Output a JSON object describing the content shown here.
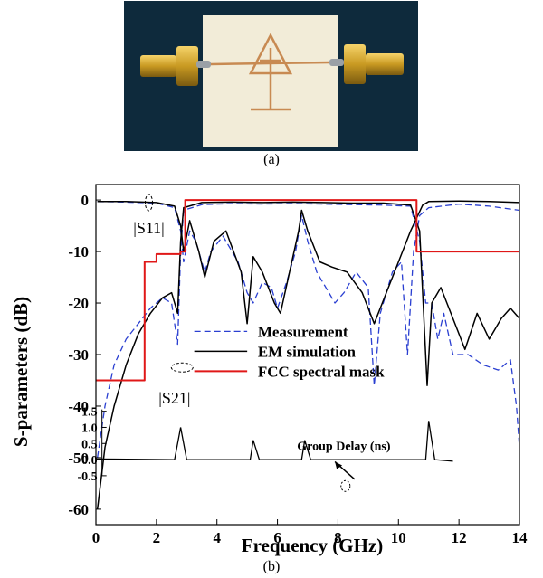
{
  "captions": {
    "a": "(a)",
    "b": "(b)"
  },
  "chart_data": {
    "type": "line",
    "xlabel": "Frequency (GHz)",
    "ylabel": "S-parameters (dB)",
    "xlim": [
      0,
      14
    ],
    "ylim": [
      -63,
      3
    ],
    "x_ticks": [
      0,
      2,
      4,
      6,
      8,
      10,
      12,
      14
    ],
    "y_ticks": [
      0,
      -10,
      -20,
      -30,
      -40,
      -50,
      -60
    ],
    "grid": false,
    "legend_position": "center",
    "colors": {
      "measurement": "#2a3fd1",
      "em_simulation": "#000000",
      "fcc_mask": "#e01818"
    },
    "legend": [
      "Measurement",
      "EM simulation",
      "FCC spectral mask"
    ],
    "annotations": {
      "s11": "|S11|",
      "s21": "|S21|",
      "group_delay": "Group Delay (ns)"
    },
    "series": [
      {
        "name": "Measurement",
        "curves": {
          "s11": [
            [
              0.05,
              -0.3
            ],
            [
              1,
              -0.4
            ],
            [
              2,
              -0.6
            ],
            [
              2.6,
              -1.5
            ],
            [
              2.8,
              -6
            ],
            [
              2.9,
              -12
            ],
            [
              3.1,
              -6
            ],
            [
              3.3,
              -8
            ],
            [
              3.6,
              -14
            ],
            [
              3.8,
              -10
            ],
            [
              4.2,
              -7
            ],
            [
              4.7,
              -12
            ],
            [
              5.0,
              -18
            ],
            [
              5.2,
              -20
            ],
            [
              5.5,
              -16
            ],
            [
              5.8,
              -17
            ],
            [
              6.0,
              -21
            ],
            [
              6.3,
              -16
            ],
            [
              6.6,
              -10
            ],
            [
              6.8,
              -3
            ],
            [
              7.0,
              -8
            ],
            [
              7.3,
              -14
            ],
            [
              7.6,
              -17
            ],
            [
              7.9,
              -20
            ],
            [
              8.2,
              -18
            ],
            [
              8.6,
              -14
            ],
            [
              9.0,
              -17
            ],
            [
              9.2,
              -36
            ],
            [
              9.4,
              -22
            ],
            [
              9.8,
              -14
            ],
            [
              10.1,
              -12
            ],
            [
              10.3,
              -30
            ],
            [
              10.5,
              -10
            ],
            [
              10.7,
              -3
            ],
            [
              11,
              -1.5
            ],
            [
              12,
              -0.8
            ],
            [
              13,
              -1.2
            ],
            [
              14,
              -2
            ]
          ],
          "s21": [
            [
              0.05,
              -50
            ],
            [
              0.3,
              -40
            ],
            [
              0.6,
              -32
            ],
            [
              1,
              -27
            ],
            [
              1.4,
              -24
            ],
            [
              1.8,
              -21
            ],
            [
              2.2,
              -19
            ],
            [
              2.5,
              -20
            ],
            [
              2.7,
              -28
            ],
            [
              2.8,
              -10
            ],
            [
              2.9,
              -2
            ],
            [
              3.5,
              -0.9
            ],
            [
              4.5,
              -0.7
            ],
            [
              5.5,
              -0.8
            ],
            [
              6.5,
              -0.7
            ],
            [
              7.5,
              -0.8
            ],
            [
              8.5,
              -0.9
            ],
            [
              9.5,
              -1.0
            ],
            [
              10.4,
              -1.2
            ],
            [
              10.7,
              -8
            ],
            [
              10.9,
              -20
            ],
            [
              11.1,
              -20
            ],
            [
              11.3,
              -27
            ],
            [
              11.5,
              -22
            ],
            [
              11.8,
              -30
            ],
            [
              12.3,
              -30
            ],
            [
              12.8,
              -32
            ],
            [
              13.3,
              -33
            ],
            [
              13.7,
              -31
            ],
            [
              13.9,
              -40
            ],
            [
              14,
              -48
            ]
          ]
        },
        "group_delay": [
          [
            0,
            0.02
          ],
          [
            2.6,
            0.0
          ],
          [
            2.8,
            1.0
          ],
          [
            3.0,
            0.0
          ],
          [
            5.1,
            0.0
          ],
          [
            5.2,
            0.6
          ],
          [
            5.4,
            0.0
          ],
          [
            6.8,
            0.0
          ],
          [
            6.9,
            0.6
          ],
          [
            7.1,
            0.0
          ],
          [
            10.9,
            0.0
          ],
          [
            11.0,
            1.2
          ],
          [
            11.2,
            0.0
          ],
          [
            11.8,
            -0.05
          ]
        ]
      },
      {
        "name": "EM simulation",
        "curves": {
          "s11": [
            [
              0.05,
              -0.3
            ],
            [
              1,
              -0.3
            ],
            [
              2,
              -0.5
            ],
            [
              2.6,
              -1.2
            ],
            [
              2.8,
              -5
            ],
            [
              2.9,
              -10
            ],
            [
              3.1,
              -4
            ],
            [
              3.4,
              -10
            ],
            [
              3.6,
              -15
            ],
            [
              3.9,
              -8
            ],
            [
              4.3,
              -6
            ],
            [
              4.8,
              -14
            ],
            [
              5.0,
              -24
            ],
            [
              5.2,
              -11
            ],
            [
              5.5,
              -14
            ],
            [
              5.9,
              -20
            ],
            [
              6.1,
              -22
            ],
            [
              6.4,
              -14
            ],
            [
              6.7,
              -6
            ],
            [
              6.8,
              -2
            ],
            [
              7.0,
              -6
            ],
            [
              7.4,
              -12
            ],
            [
              7.8,
              -13
            ],
            [
              8.3,
              -14
            ],
            [
              8.8,
              -18
            ],
            [
              9.2,
              -24
            ],
            [
              9.6,
              -18
            ],
            [
              10.0,
              -12
            ],
            [
              10.4,
              -6
            ],
            [
              10.8,
              -1
            ],
            [
              11,
              -0.3
            ],
            [
              12,
              -0.2
            ],
            [
              13,
              -0.3
            ],
            [
              14,
              -0.5
            ]
          ],
          "s21": [
            [
              0.05,
              -60
            ],
            [
              0.3,
              -48
            ],
            [
              0.6,
              -40
            ],
            [
              1,
              -32
            ],
            [
              1.4,
              -26
            ],
            [
              1.8,
              -22
            ],
            [
              2.2,
              -19
            ],
            [
              2.5,
              -18
            ],
            [
              2.7,
              -22
            ],
            [
              2.8,
              -8
            ],
            [
              2.9,
              -1.5
            ],
            [
              3.5,
              -0.5
            ],
            [
              4.5,
              -0.4
            ],
            [
              5.5,
              -0.5
            ],
            [
              6.5,
              -0.4
            ],
            [
              7.5,
              -0.5
            ],
            [
              8.5,
              -0.6
            ],
            [
              9.5,
              -0.6
            ],
            [
              10.4,
              -1.0
            ],
            [
              10.7,
              -6
            ],
            [
              10.95,
              -36
            ],
            [
              11.1,
              -20
            ],
            [
              11.4,
              -17
            ],
            [
              11.8,
              -23
            ],
            [
              12.2,
              -29
            ],
            [
              12.6,
              -22
            ],
            [
              13.0,
              -27
            ],
            [
              13.4,
              -23
            ],
            [
              13.7,
              -21
            ],
            [
              14,
              -23
            ]
          ]
        },
        "group_delay": []
      },
      {
        "name": "FCC spectral mask",
        "curves": {
          "mask": [
            [
              0,
              -35
            ],
            [
              1.61,
              -35
            ],
            [
              1.61,
              -12
            ],
            [
              2.0,
              -12
            ],
            [
              2.0,
              -10.5
            ],
            [
              2.8,
              -10.5
            ],
            [
              2.8,
              -10
            ],
            [
              2.95,
              -10
            ],
            [
              2.95,
              0
            ],
            [
              10.6,
              0
            ],
            [
              10.6,
              -10
            ],
            [
              14,
              -10
            ]
          ]
        }
      }
    ],
    "inset": {
      "ylabel": "",
      "ylim": [
        -0.5,
        1.5
      ],
      "y_ticks": [
        1.5,
        1.0,
        0.5,
        0.0,
        -0.5
      ],
      "y_tick_labels": [
        "1.5",
        "1.0",
        "0.5",
        "0.0",
        "-0.5"
      ]
    }
  }
}
